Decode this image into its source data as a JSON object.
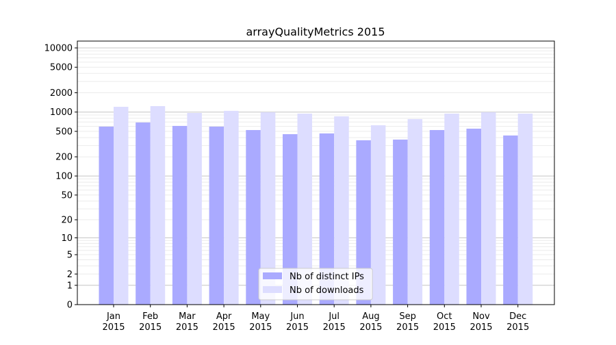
{
  "chart_data": {
    "type": "bar",
    "title": "arrayQualityMetrics 2015",
    "xlabel": "",
    "ylabel": "",
    "yscale": "symlog",
    "ylim": [
      0,
      13000
    ],
    "yticks": [
      0,
      1,
      2,
      5,
      10,
      20,
      50,
      100,
      200,
      500,
      1000,
      2000,
      5000,
      10000
    ],
    "ytick_labels": [
      "0",
      "1",
      "2",
      "5",
      "10",
      "20",
      "50",
      "100",
      "200",
      "500",
      "1000",
      "2000",
      "5000",
      "10000"
    ],
    "grid": true,
    "legend_position": "bottom-center",
    "categories": [
      "Jan\n2015",
      "Feb\n2015",
      "Mar\n2015",
      "Apr\n2015",
      "May\n2015",
      "Jun\n2015",
      "Jul\n2015",
      "Aug\n2015",
      "Sep\n2015",
      "Oct\n2015",
      "Nov\n2015",
      "Dec\n2015"
    ],
    "series": [
      {
        "name": "Nb of distinct IPs",
        "color": "#aaaaff",
        "values": [
          593,
          688,
          608,
          593,
          524,
          452,
          464,
          363,
          372,
          524,
          551,
          431
        ]
      },
      {
        "name": "Nb of downloads",
        "color": "#ddddff",
        "values": [
          1209,
          1239,
          969,
          1045,
          994,
          946,
          857,
          623,
          778,
          946,
          994,
          946
        ]
      }
    ]
  }
}
